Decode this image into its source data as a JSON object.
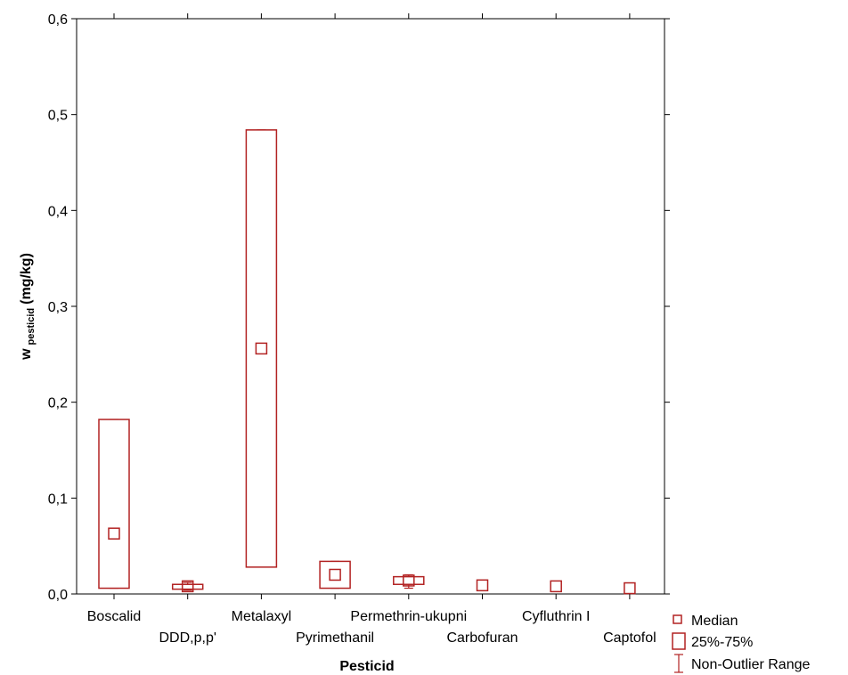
{
  "chart_data": {
    "type": "box",
    "title": "",
    "xlabel": "Pesticid",
    "ylabel_main": "w",
    "ylabel_sub": "pesticid",
    "ylabel_unit": "(mg/kg)",
    "ylim": [
      0,
      0.6
    ],
    "yticks": [
      "0,0",
      "0,1",
      "0,2",
      "0,3",
      "0,4",
      "0,5",
      "0,6"
    ],
    "ytick_values": [
      0,
      0.1,
      0.2,
      0.3,
      0.4,
      0.5,
      0.6
    ],
    "grid": false,
    "series_color": "#b22222",
    "categories": [
      "Boscalid",
      "DDD,p,p'",
      "Metalaxyl",
      "Pyrimethanil",
      "Permethrin-ukupni",
      "Carbofuran",
      "Cyfluthrin I",
      "Captofol"
    ],
    "median": [
      0.063,
      0.008,
      0.256,
      0.02,
      0.014,
      0.009,
      0.008,
      0.006
    ],
    "q1": [
      0.006,
      0.005,
      0.028,
      0.006,
      0.01,
      0.009,
      0.008,
      0.006
    ],
    "q3": [
      0.182,
      0.01,
      0.484,
      0.034,
      0.018,
      0.009,
      0.008,
      0.006
    ],
    "whisker_low": [
      0.006,
      0.004,
      0.028,
      0.006,
      0.006,
      0.009,
      0.008,
      0.006
    ],
    "whisker_high": [
      0.182,
      0.012,
      0.484,
      0.034,
      0.02,
      0.009,
      0.008,
      0.006
    ],
    "legend": {
      "position": "bottom-right",
      "items": [
        "Median",
        "25%-75%",
        "Non-Outlier Range"
      ]
    }
  }
}
